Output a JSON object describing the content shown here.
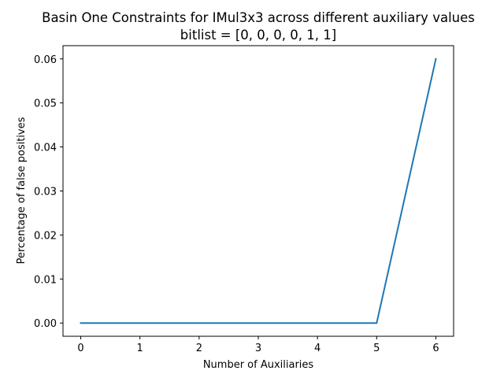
{
  "chart_data": {
    "type": "line",
    "title": "Basin One Constraints for IMul3x3 across different auxiliary values",
    "subtitle": "bitlist = [0, 0, 0, 0, 1, 1]",
    "xlabel": "Number of Auxiliaries",
    "ylabel": "Percentage of false positives",
    "x": [
      0,
      1,
      2,
      3,
      4,
      5,
      6
    ],
    "series": [
      {
        "values": [
          0.0,
          0.0,
          0.0,
          0.0,
          0.0,
          0.0,
          0.06
        ],
        "color": "#1f77b4"
      }
    ],
    "xlim": [
      -0.3,
      6.3
    ],
    "ylim": [
      -0.003,
      0.063
    ],
    "xticks": [
      0,
      1,
      2,
      3,
      4,
      5,
      6
    ],
    "xtick_labels": [
      "0",
      "1",
      "2",
      "3",
      "4",
      "5",
      "6"
    ],
    "yticks": [
      0.0,
      0.01,
      0.02,
      0.03,
      0.04,
      0.05,
      0.06
    ],
    "ytick_labels": [
      "0.00",
      "0.01",
      "0.02",
      "0.03",
      "0.04",
      "0.05",
      "0.06"
    ],
    "grid": false,
    "legend": "none"
  }
}
